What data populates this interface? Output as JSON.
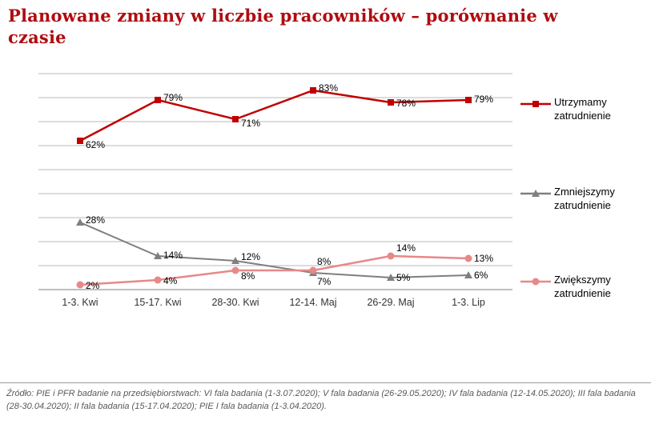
{
  "title": "Planowane zmiany w liczbie pracowników – porównanie w czasie",
  "colors": {
    "title": "#b00b10",
    "gridline": "#b8b8b8",
    "axis": "#7f7f7f",
    "label_text": "#000000",
    "tick_text": "#333333",
    "source_text": "#595959"
  },
  "chart_data": {
    "type": "line",
    "categories": [
      "1-3. Kwi",
      "15-17. Kwi",
      "28-30. Kwi",
      "12-14. Maj",
      "26-29. Maj",
      "1-3. Lip"
    ],
    "series": [
      {
        "name": "Utrzymamy zatrudnienie",
        "values": [
          62,
          79,
          71,
          83,
          78,
          79
        ],
        "labels": [
          "62%",
          "79%",
          "71%",
          "83%",
          "78%",
          "79%"
        ],
        "color": "#c00000",
        "marker": "square"
      },
      {
        "name": "Zmniejszymy zatrudnienie",
        "values": [
          28,
          14,
          12,
          7,
          5,
          6
        ],
        "labels": [
          "28%",
          "14%",
          "12%",
          "7%",
          "5%",
          "6%"
        ],
        "color": "#7f7f7f",
        "marker": "triangle"
      },
      {
        "name": "Zwiększymy zatrudnienie",
        "values": [
          2,
          4,
          8,
          8,
          14,
          13
        ],
        "labels": [
          "2%",
          "4%",
          "8%",
          "8%",
          "14%",
          "13%"
        ],
        "color": "#e88888",
        "marker": "circle"
      }
    ],
    "ylabel": "",
    "xlabel": "",
    "ylim": [
      0,
      90
    ],
    "grid": "horizontal gridlines every 10%",
    "legend_position": "right",
    "data_labels": true
  },
  "footer": {
    "source": "Źródło: PIE i PFR badanie na przedsiębiorstwach: VI fala badania (1-3.07.2020);  V fala badania (26-29.05.2020); IV fala badania (12-14.05.2020);  III fala badania (28-30.04.2020); II fala badania (15-17.04.2020); PIE I fala badania (1-3.04.2020)."
  }
}
